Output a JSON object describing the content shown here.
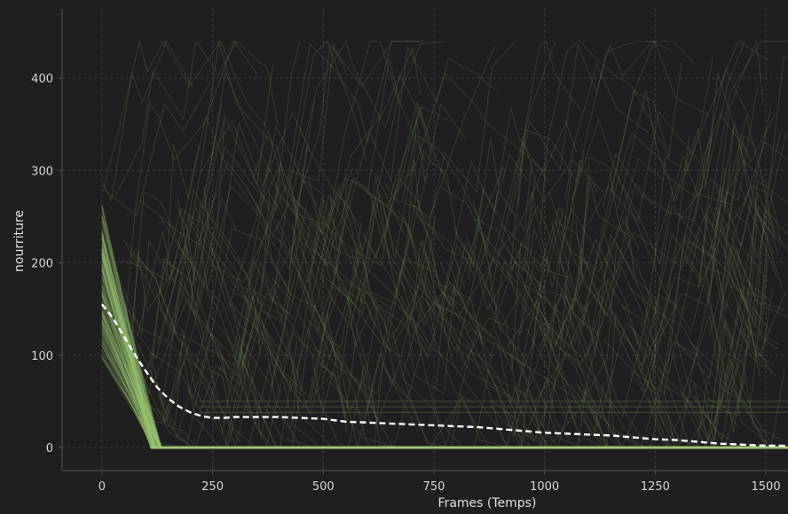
{
  "chart_data": {
    "type": "line",
    "title": "",
    "xlabel": "Frames (Temps)",
    "ylabel": "nourriture",
    "xlim": [
      -90,
      1550
    ],
    "ylim": [
      -25,
      475
    ],
    "xticks": [
      0,
      250,
      500,
      750,
      1000,
      1250,
      1500
    ],
    "yticks": [
      0,
      100,
      200,
      300,
      400
    ],
    "grid": true,
    "colors": {
      "background": "#1f1f1f",
      "series": "#9dc873",
      "mean_line": "#ffffff",
      "grid": "#3a3a3a",
      "axis": "#555555"
    },
    "series": [
      {
        "style": "dashed",
        "x": [
          0,
          25,
          50,
          75,
          100,
          125,
          150,
          175,
          200,
          225,
          250,
          275,
          300,
          350,
          400,
          450,
          500,
          550,
          600,
          650,
          700,
          750,
          800,
          850,
          900,
          950,
          1000,
          1050,
          1100,
          1150,
          1200,
          1250,
          1300,
          1350,
          1400,
          1450,
          1500,
          1550
        ],
        "y": [
          155,
          140,
          120,
          100,
          82,
          65,
          53,
          44,
          38,
          34,
          32,
          32,
          33,
          33,
          33,
          32,
          31,
          28,
          27,
          26,
          25,
          24,
          23,
          22,
          20,
          18,
          16,
          15,
          14,
          13,
          11,
          9,
          8,
          6,
          4,
          3,
          2,
          2
        ]
      }
    ]
  }
}
